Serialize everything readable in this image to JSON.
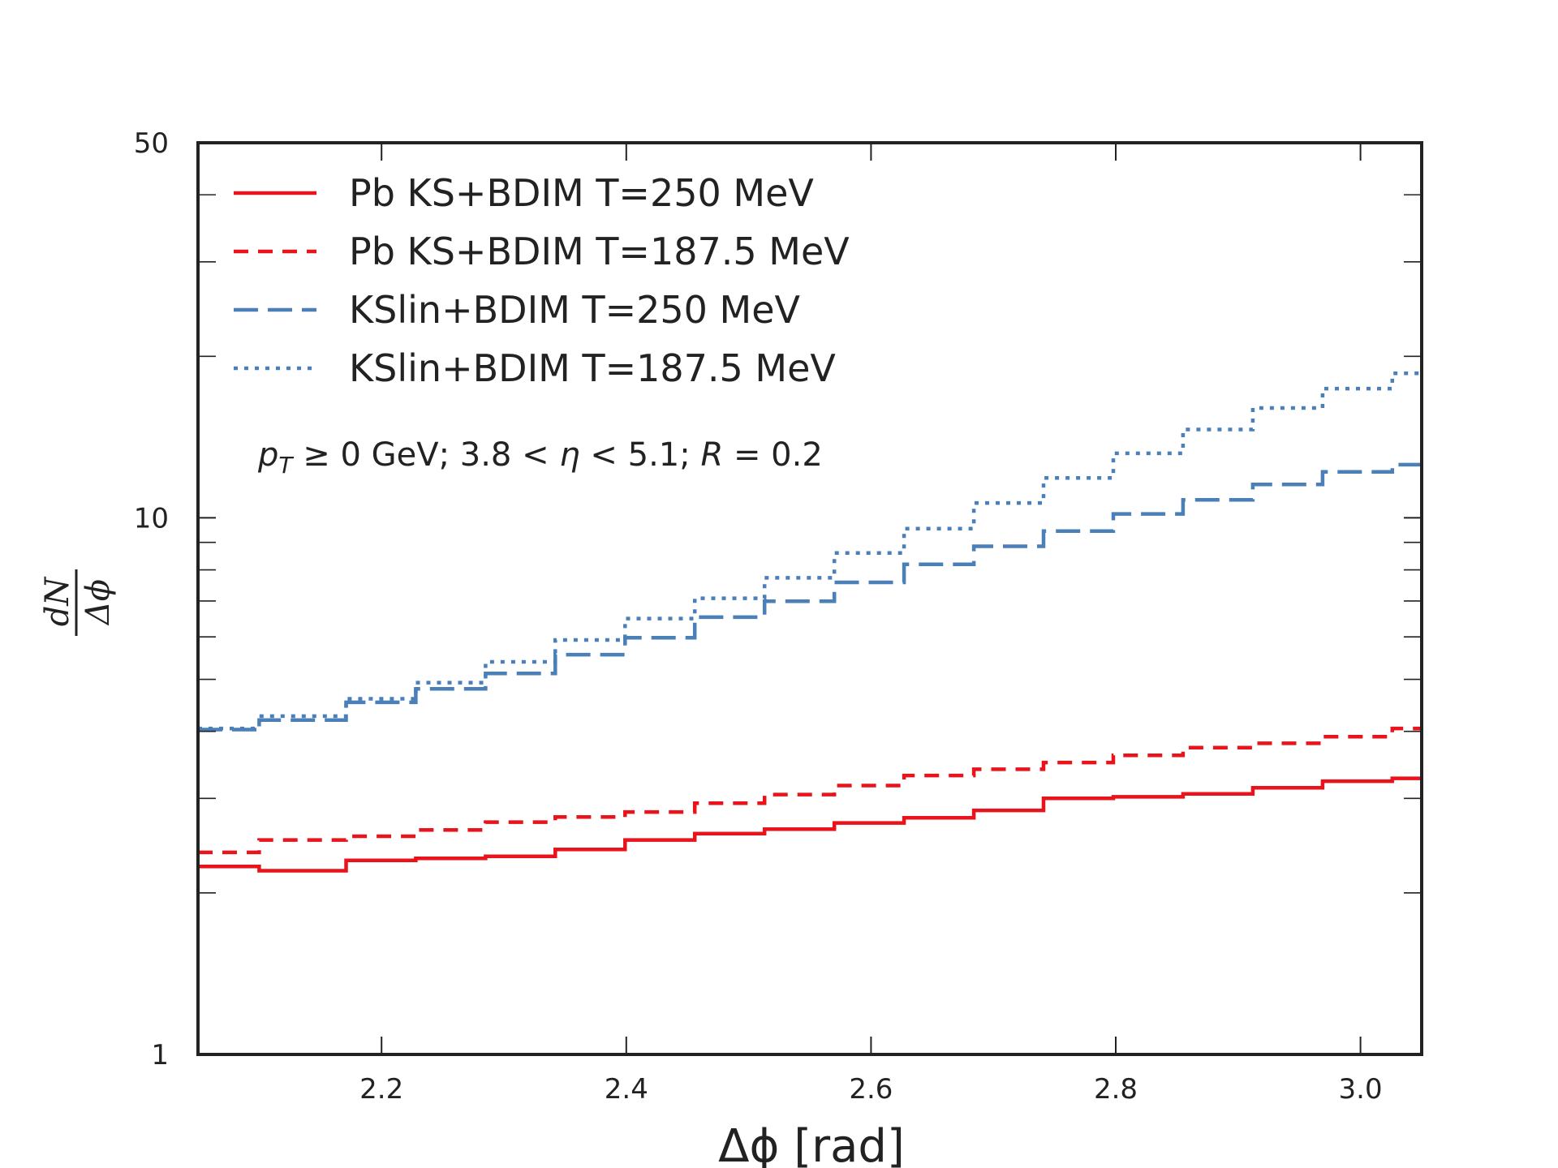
{
  "chart_data": {
    "type": "line",
    "step": true,
    "yscale": "log",
    "xlabel": "Δϕ [rad]",
    "ylabel": {
      "numerator": "dN",
      "denominator": "Δϕ"
    },
    "xlim": [
      2.05,
      3.05
    ],
    "ylim": [
      1,
      50
    ],
    "xticks": [
      2.2,
      2.4,
      2.6,
      2.8,
      3.0
    ],
    "xtick_labels": [
      "2.2",
      "2.4",
      "2.6",
      "2.8",
      "3.0"
    ],
    "yticks_major": [
      1,
      10,
      50
    ],
    "ytick_labels": [
      "1",
      "10",
      "50"
    ],
    "yticks_minor": [
      2,
      3,
      4,
      5,
      6,
      7,
      8,
      9,
      20,
      30,
      40
    ],
    "grid": false,
    "legend_position": "top-left",
    "annotation": {
      "pt": "p",
      "pt_sub": "T",
      "pt_rest": " ≥ 0 GeV;  3.8 < ",
      "eta": "η",
      "eta_rest": " < 5.1;  ",
      "r": "R",
      "r_rest": " = 0.2"
    },
    "bin_edges": [
      2.05,
      2.1,
      2.171,
      2.228,
      2.285,
      2.342,
      2.399,
      2.456,
      2.513,
      2.57,
      2.627,
      2.684,
      2.741,
      2.798,
      2.855,
      2.912,
      2.969,
      3.026,
      3.05
    ],
    "series": [
      {
        "name": "Pb KS+BDIM T=250 MeV",
        "color": "#e8131b",
        "dash": "solid",
        "values": [
          2.24,
          2.2,
          2.3,
          2.32,
          2.34,
          2.41,
          2.51,
          2.58,
          2.63,
          2.7,
          2.76,
          2.85,
          3.0,
          3.02,
          3.06,
          3.14,
          3.23,
          3.27
        ]
      },
      {
        "name": "Pb KS+BDIM T=187.5 MeV",
        "color": "#e8131b",
        "dash": "dashed",
        "values": [
          2.38,
          2.51,
          2.55,
          2.62,
          2.71,
          2.77,
          2.83,
          2.94,
          3.05,
          3.17,
          3.31,
          3.4,
          3.5,
          3.61,
          3.73,
          3.8,
          3.91,
          4.05
        ]
      },
      {
        "name": "KSlin+BDIM T=250 MeV",
        "color": "#4a7fb8",
        "dash": "longdash",
        "values": [
          4.03,
          4.2,
          4.53,
          4.8,
          5.13,
          5.56,
          5.98,
          6.53,
          6.99,
          7.58,
          8.19,
          8.85,
          9.45,
          10.17,
          10.8,
          11.54,
          12.18,
          12.56
        ]
      },
      {
        "name": "KSlin+BDIM T=187.5 MeV",
        "color": "#4a7fb8",
        "dash": "dotted",
        "values": [
          4.05,
          4.27,
          4.6,
          4.93,
          5.39,
          5.92,
          6.49,
          7.08,
          7.73,
          8.6,
          9.55,
          10.66,
          11.87,
          13.19,
          14.61,
          16.02,
          17.41,
          18.59
        ]
      }
    ]
  }
}
